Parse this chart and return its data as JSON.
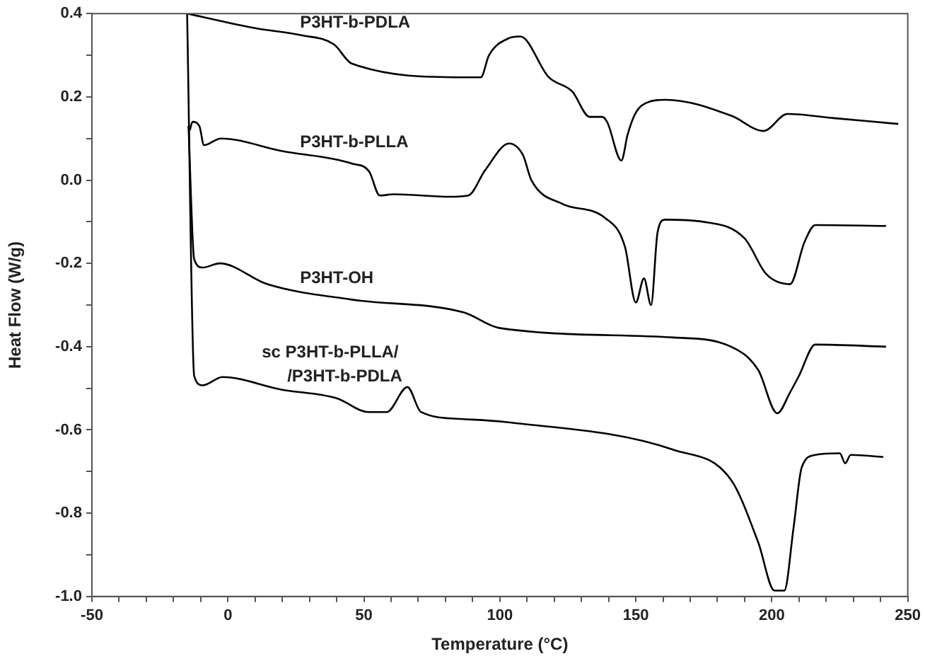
{
  "chart_data": {
    "type": "line",
    "xlabel": "Temperature (°C)",
    "ylabel": "Heat Flow (W/g)",
    "marker": "none",
    "line_style": "solid",
    "grid": false,
    "legend": false,
    "xlim": [
      -50,
      250
    ],
    "xticks": [
      -50,
      {
        "value": -40,
        "label": null
      },
      {
        "value": -30,
        "label": null
      },
      {
        "value": -20,
        "label": null
      },
      {
        "value": -10,
        "label": null
      },
      0,
      {
        "value": 10,
        "label": null
      },
      {
        "value": 20,
        "label": null
      },
      {
        "value": 30,
        "label": null
      },
      {
        "value": 40,
        "label": null
      },
      50,
      {
        "value": 60,
        "label": null
      },
      {
        "value": 70,
        "label": null
      },
      {
        "value": 80,
        "label": null
      },
      {
        "value": 90,
        "label": null
      },
      100,
      {
        "value": 110,
        "label": null
      },
      {
        "value": 120,
        "label": null
      },
      {
        "value": 130,
        "label": null
      },
      {
        "value": 140,
        "label": null
      },
      150,
      {
        "value": 160,
        "label": null
      },
      {
        "value": 170,
        "label": null
      },
      {
        "value": 180,
        "label": null
      },
      {
        "value": 190,
        "label": null
      },
      200,
      {
        "value": 210,
        "label": null
      },
      {
        "value": 220,
        "label": null
      },
      {
        "value": 230,
        "label": null
      },
      {
        "value": 240,
        "label": null
      },
      250
    ],
    "ylim": [
      -1.0,
      0.4
    ],
    "yticks": [
      {
        "value": -1.0,
        "label": "-1.0"
      },
      {
        "value": -0.9,
        "label": null
      },
      -0.8,
      {
        "value": -0.7,
        "label": null
      },
      -0.6,
      {
        "value": -0.5,
        "label": null
      },
      -0.4,
      {
        "value": -0.3,
        "label": null
      },
      -0.2,
      {
        "value": -0.1,
        "label": null
      },
      {
        "value": 0,
        "label": "0.0"
      },
      {
        "value": 0.1,
        "label": null
      },
      0.2,
      {
        "value": 0.3,
        "label": null
      },
      0.4
    ],
    "series": [
      {
        "name": "P3HT-b-PDLA",
        "color": "#000000",
        "x": [
          -15,
          10,
          27,
          39,
          45.5,
          87,
          93,
          96,
          103,
          107.5,
          118,
          126.6,
          133,
          137.6,
          139.5,
          144.7,
          147,
          150,
          154,
          161,
          185,
          197,
          205.7,
          222.7,
          246.5
        ],
        "values": [
          0.4,
          0.365,
          0.348,
          0.326,
          0.28,
          0.247,
          0.247,
          0.3,
          0.34,
          0.345,
          0.247,
          0.213,
          0.152,
          0.152,
          0.139,
          0.047,
          0.11,
          0.162,
          0.186,
          0.193,
          0.155,
          0.118,
          0.159,
          0.149,
          0.135
        ]
      },
      {
        "name": "P3HT-b-PLLA",
        "color": "#000000",
        "x": [
          -14,
          -13,
          -10.5,
          -8.8,
          -2.6,
          19.6,
          45.5,
          52,
          55.8,
          61,
          81.7,
          88.4,
          94.6,
          103.4,
          108.5,
          111.6,
          123,
          138.5,
          146,
          150,
          153,
          155.6,
          158,
          160.7,
          174.7,
          190,
          198,
          206.7,
          212,
          216,
          242
        ],
        "values": [
          0.12,
          0.14,
          0.13,
          0.084,
          0.1,
          0.07,
          0.04,
          0.02,
          -0.037,
          -0.034,
          -0.04,
          -0.037,
          0.024,
          0.088,
          0.06,
          0,
          -0.057,
          -0.09,
          -0.16,
          -0.294,
          -0.236,
          -0.3,
          -0.125,
          -0.095,
          -0.1,
          -0.14,
          -0.226,
          -0.25,
          -0.149,
          -0.108,
          -0.11
        ]
      },
      {
        "name": "P3HT-OH",
        "color": "#000000",
        "x": [
          -14.5,
          -12.4,
          -9.3,
          -3,
          14.5,
          45.5,
          86.8,
          99.7,
          164,
          185,
          195,
          202,
          206.7,
          210,
          216,
          242
        ],
        "values": [
          0.13,
          -0.19,
          -0.21,
          -0.2,
          -0.25,
          -0.287,
          -0.318,
          -0.355,
          -0.378,
          -0.4,
          -0.456,
          -0.56,
          -0.51,
          -0.47,
          -0.395,
          -0.4
        ]
      },
      {
        "name": "sc P3HT-b-PLLA/\n/P3HT-b-PDLA",
        "color": "#000000",
        "x": [
          -15,
          -12.4,
          -9.3,
          -2,
          19.6,
          40,
          51.7,
          58.4,
          66,
          71,
          86.8,
          102,
          164,
          185,
          195,
          201,
          204.6,
          208,
          211,
          216,
          225,
          227,
          229,
          241
        ],
        "values": [
          0.4,
          -0.47,
          -0.493,
          -0.473,
          -0.503,
          -0.524,
          -0.557,
          -0.557,
          -0.497,
          -0.557,
          -0.574,
          -0.581,
          -0.648,
          -0.72,
          -0.87,
          -0.986,
          -0.986,
          -0.835,
          -0.69,
          -0.66,
          -0.656,
          -0.68,
          -0.66,
          -0.665
        ]
      }
    ]
  }
}
